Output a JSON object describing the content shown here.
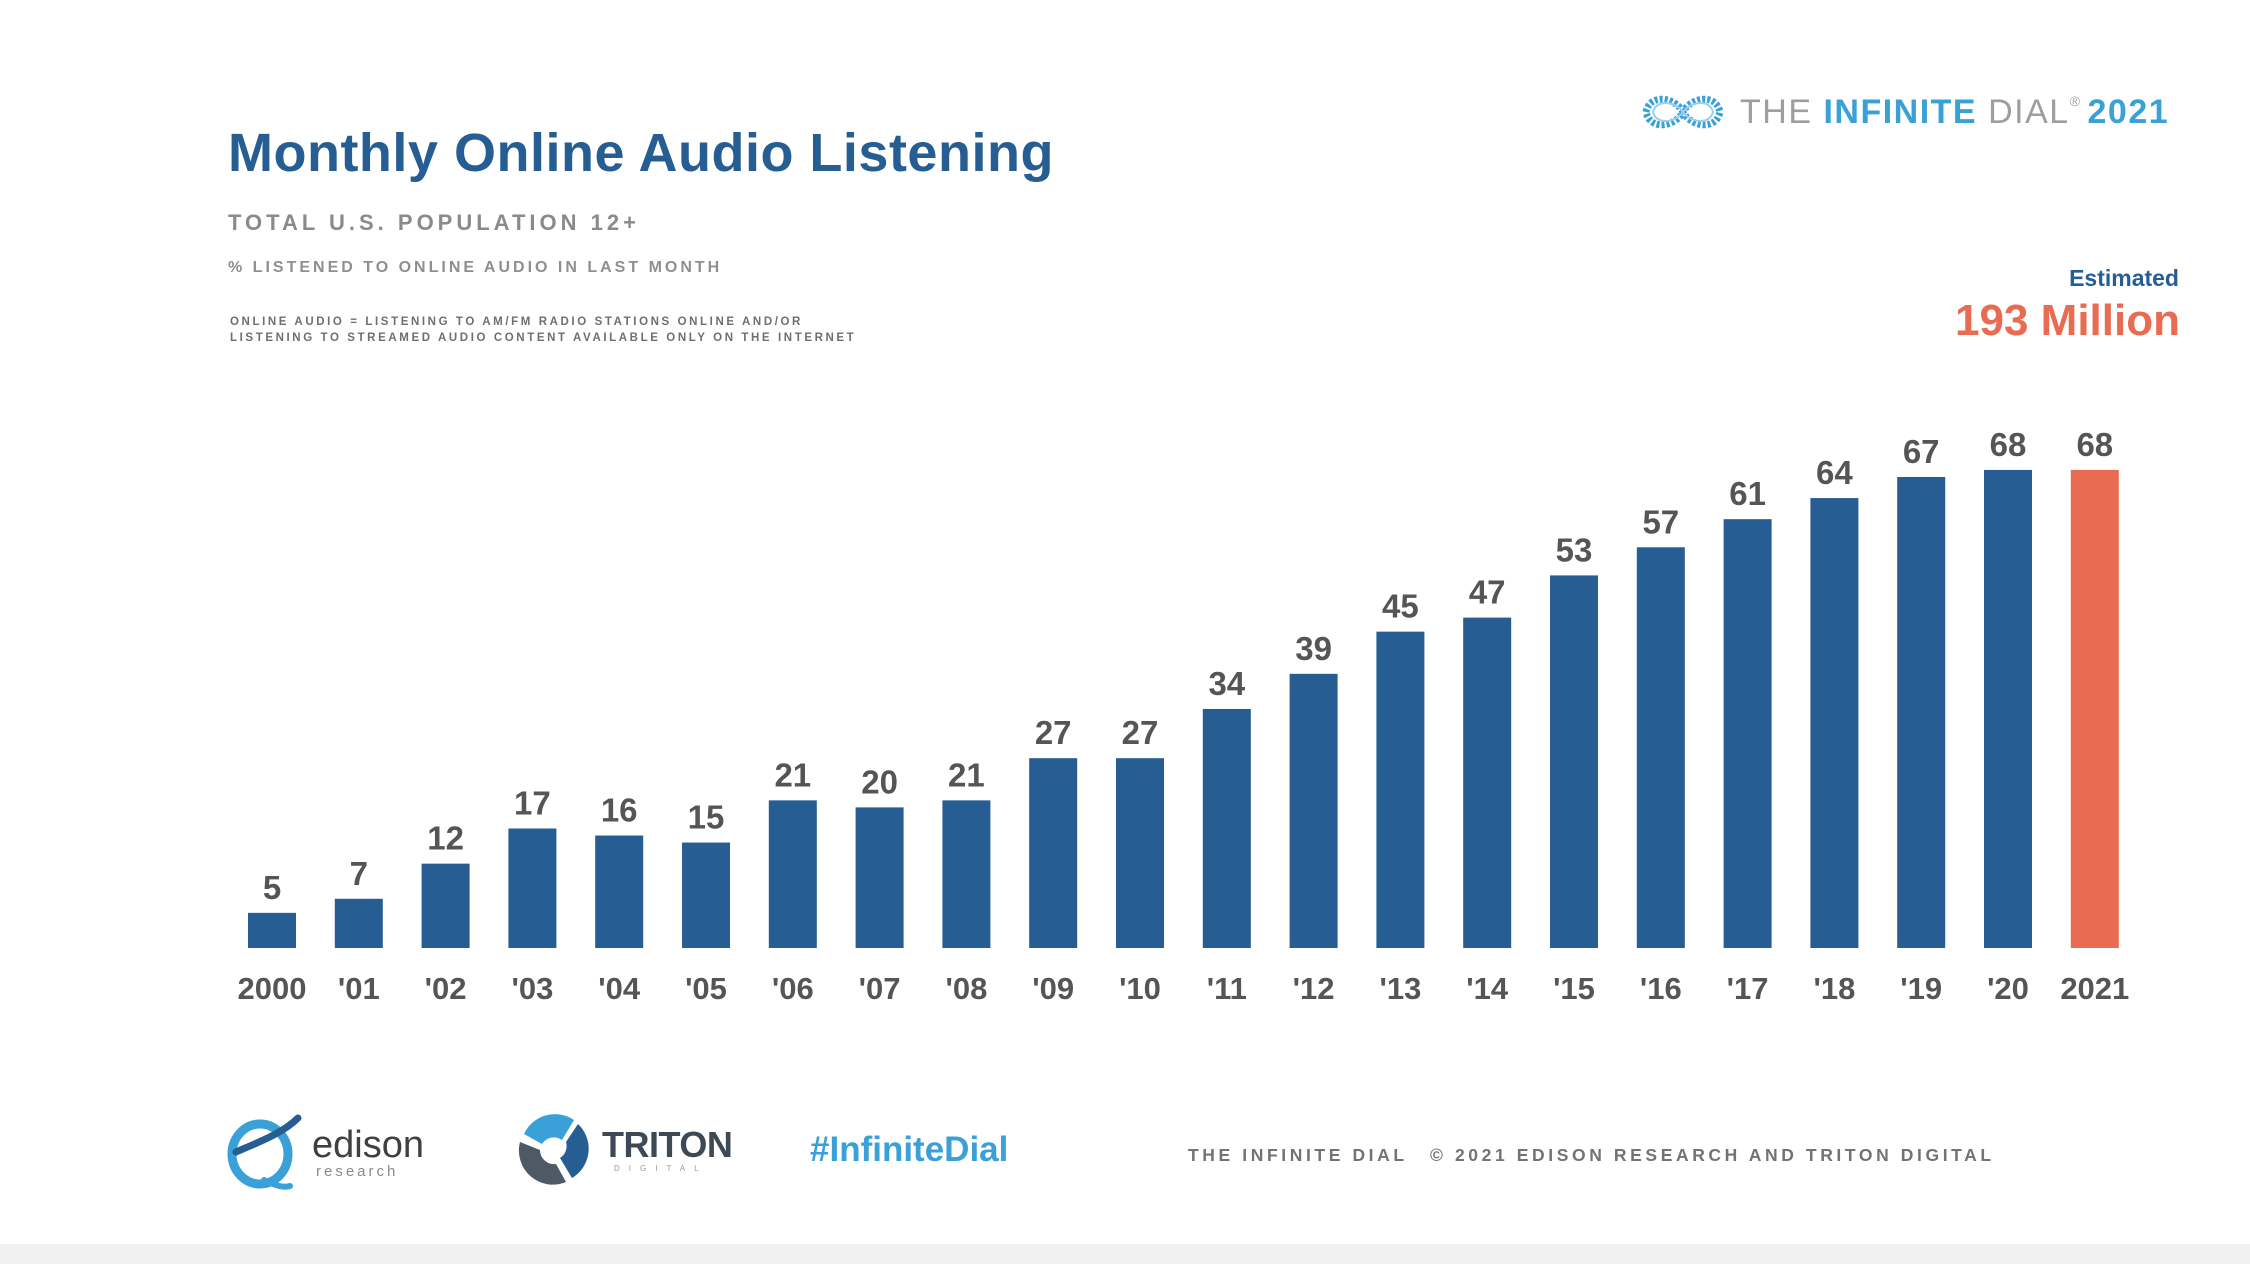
{
  "header": {
    "title": "Monthly Online Audio Listening",
    "subtitle": "TOTAL U.S. POPULATION 12+",
    "measure": "% LISTENED TO ONLINE AUDIO IN LAST MONTH",
    "definition_line1": "ONLINE AUDIO = LISTENING TO AM/FM RADIO STATIONS ONLINE AND/OR",
    "definition_line2": "LISTENING TO STREAMED AUDIO CONTENT AVAILABLE ONLY ON THE INTERNET"
  },
  "brand": {
    "the": "THE ",
    "infinite": "INFINITE",
    "dial": " DIAL",
    "reg": "®",
    "year": "2021"
  },
  "estimate": {
    "label": "Estimated",
    "value": "193 Million"
  },
  "footer": {
    "edison_name": "edison",
    "edison_sub": "research",
    "triton_name": "TRITON",
    "triton_sub": "DIGITAL",
    "hashtag": "#InfiniteDial",
    "brand_text": "THE INFINITE DIAL",
    "copyright": "© 2021 EDISON RESEARCH AND TRITON DIGITAL"
  },
  "colors": {
    "bar": "#265d92",
    "highlight_bar": "#e96c52",
    "title": "#265d92",
    "accent": "#3aa0d8",
    "label": "#555555"
  },
  "icons": {
    "brand_logo": "infinity-loop-icon",
    "edison_logo": "edison-swirl-icon",
    "triton_logo": "triton-ring-icon"
  },
  "chart_data": {
    "type": "bar",
    "categories": [
      "2000",
      "'01",
      "'02",
      "'03",
      "'04",
      "'05",
      "'06",
      "'07",
      "'08",
      "'09",
      "'10",
      "'11",
      "'12",
      "'13",
      "'14",
      "'15",
      "'16",
      "'17",
      "'18",
      "'19",
      "'20",
      "2021"
    ],
    "values": [
      5,
      7,
      12,
      17,
      16,
      15,
      21,
      20,
      21,
      27,
      27,
      34,
      39,
      45,
      47,
      53,
      57,
      61,
      64,
      67,
      68,
      68
    ],
    "highlight_index": 21,
    "ylim": [
      0,
      68
    ],
    "grid": false,
    "legend": "none",
    "data_labels": true
  }
}
